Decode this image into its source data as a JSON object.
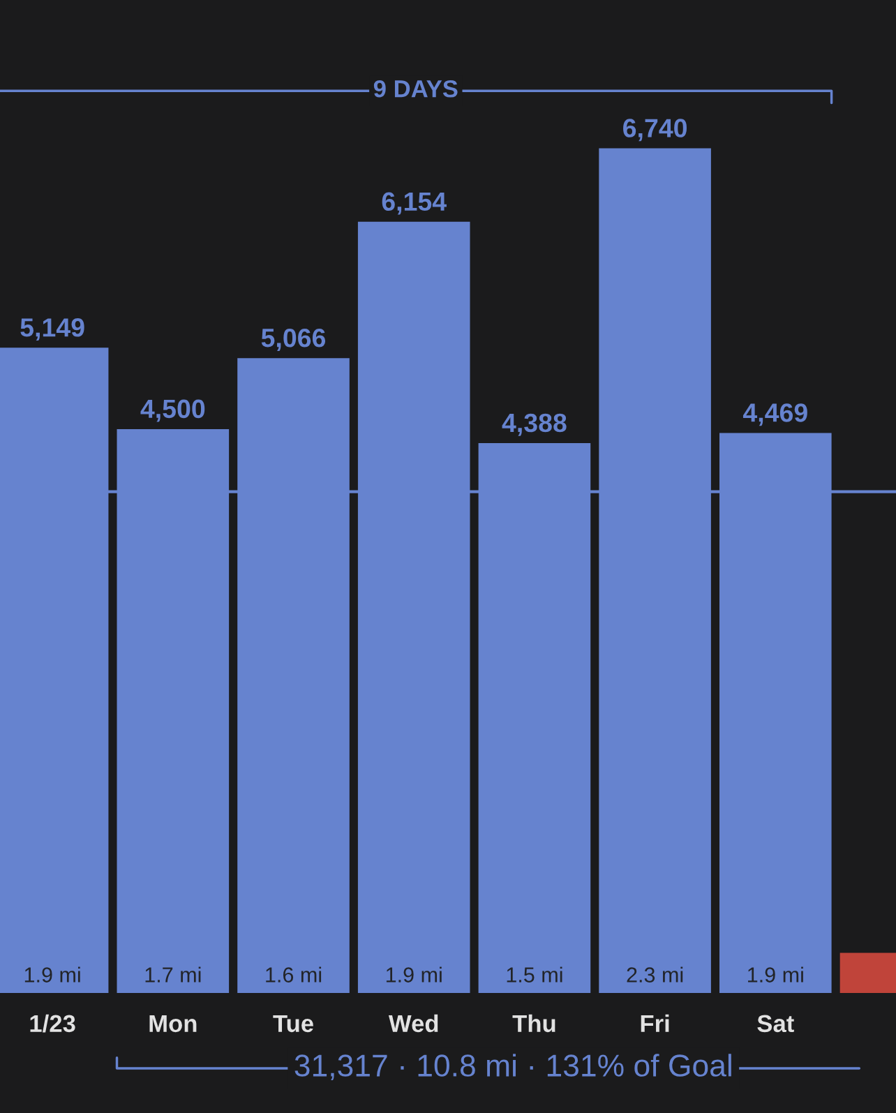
{
  "chart_data": {
    "type": "bar",
    "categories": [
      "1/23",
      "Mon",
      "Tue",
      "Wed",
      "Thu",
      "Fri",
      "Sat",
      null
    ],
    "values": [
      5149,
      4500,
      5066,
      6154,
      4388,
      6740,
      4469,
      320
    ],
    "colors": [
      "#6683cf",
      "#6683cf",
      "#6683cf",
      "#6683cf",
      "#6683cf",
      "#6683cf",
      "#6683cf",
      "#c0443a"
    ],
    "value_labels": [
      "5,149",
      "4,500",
      "5,066",
      "6,154",
      "4,388",
      "6,740",
      "4,469",
      null
    ],
    "ref_lines": [
      {
        "axis": "y",
        "value": 4000,
        "color": "#6683cf"
      }
    ],
    "annotations": [
      "9 DAYS",
      "31,317 · 10.8 mi · 131% of Goal",
      "1.9 mi",
      "1.7 mi",
      "1.6 mi",
      "1.9 mi",
      "1.5 mi",
      "2.3 mi",
      "1.9 mi"
    ]
  }
}
